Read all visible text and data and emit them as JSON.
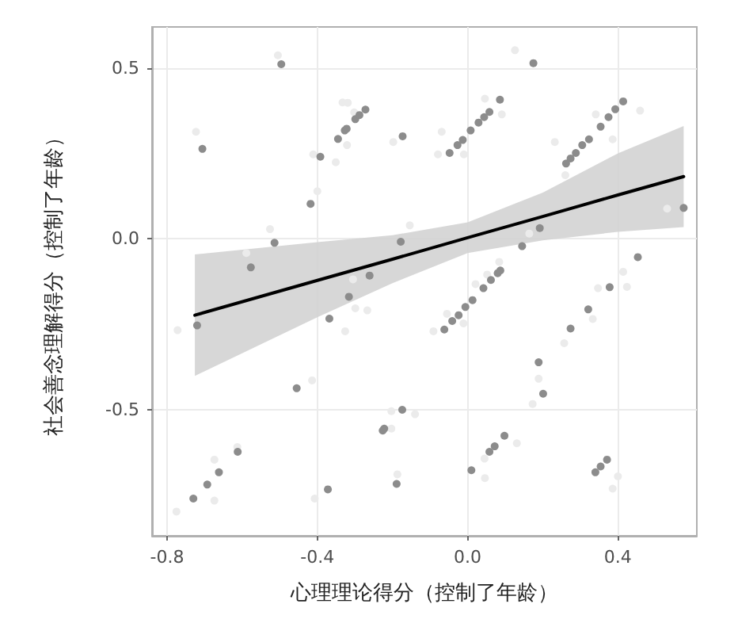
{
  "chart_data": {
    "type": "scatter",
    "xlabel": "心理理论得分（控制了年龄）",
    "ylabel": "社会善念理解得分（控制了年龄）",
    "xlim": [
      -0.84,
      0.61
    ],
    "ylim": [
      -0.87,
      0.62
    ],
    "xticks": [
      -0.8,
      -0.4,
      {
        "value": 0,
        "label": "0.0"
      },
      0.4
    ],
    "yticks": [
      -0.5,
      {
        "value": 0,
        "label": "0.0"
      },
      0.5
    ],
    "grid": true,
    "marker": "circle",
    "series": [
      {
        "color": "#ebebeb",
        "x": [
          -0.723,
          -0.505,
          -0.333,
          -0.319,
          -0.302,
          -0.321,
          -0.351,
          -0.411,
          -0.4,
          -0.526,
          -0.589,
          -0.198,
          -0.154,
          0.126,
          -0.079,
          -0.069,
          -0.01,
          0.046,
          0.091,
          0.232,
          0.26,
          0.341,
          0.459,
          0.386,
          0.531,
          0.164,
          0.084,
          -0.772,
          -0.305,
          -0.299,
          -0.267,
          -0.326,
          -0.414,
          -0.203,
          -0.14,
          -0.203,
          -0.674,
          -0.674,
          -0.613,
          -0.775,
          -0.407,
          -0.187,
          -0.091,
          -0.055,
          -0.011,
          0.021,
          0.052,
          0.084,
          0.173,
          0.189,
          0.257,
          0.333,
          0.347,
          0.414,
          0.424,
          0.045,
          0.046,
          0.131,
          0.4,
          0.386
        ],
        "values": [
          0.313,
          0.537,
          0.399,
          0.398,
          0.37,
          0.274,
          0.224,
          0.247,
          0.139,
          0.028,
          -0.042,
          0.283,
          0.039,
          0.552,
          0.247,
          0.313,
          0.247,
          0.41,
          0.364,
          0.283,
          0.186,
          0.364,
          0.375,
          0.291,
          0.088,
          0.015,
          null,
          -0.268,
          -0.119,
          -0.204,
          -0.21,
          -0.271,
          -0.415,
          -0.505,
          -0.514,
          -0.556,
          -0.647,
          -0.767,
          -0.61,
          -0.799,
          -0.761,
          -0.69,
          -0.271,
          -0.22,
          -0.248,
          -0.133,
          -0.105,
          -0.068,
          -0.484,
          -0.41,
          -0.306,
          -0.235,
          -0.145,
          -0.097,
          -0.141,
          -0.644,
          -0.701,
          -0.599,
          -0.696,
          -0.732
        ]
      },
      {
        "color": "#8c8c8c",
        "x": [
          -0.706,
          -0.496,
          -0.577,
          -0.514,
          -0.418,
          -0.392,
          -0.345,
          -0.327,
          -0.322,
          -0.299,
          -0.288,
          -0.272,
          -0.173,
          -0.178,
          0.175,
          -0.048,
          -0.027,
          -0.013,
          0.008,
          0.029,
          0.044,
          0.058,
          0.086,
          0.262,
          0.274,
          0.288,
          0.305,
          0.323,
          0.354,
          0.375,
          0.393,
          0.414,
          0.575,
          0.192,
          0.145,
          0.453,
          -0.72,
          -0.368,
          -0.316,
          -0.261,
          -0.455,
          -0.174,
          -0.222,
          -0.226,
          -0.612,
          -0.662,
          -0.693,
          -0.73,
          -0.372,
          -0.189,
          -0.062,
          -0.041,
          -0.024,
          -0.006,
          0.013,
          0.042,
          0.062,
          0.08,
          0.087,
          0.189,
          0.201,
          0.274,
          0.321,
          0.378,
          0.01,
          0.058,
          0.072,
          0.098,
          0.34,
          0.354,
          0.371
        ],
        "values": [
          0.263,
          0.511,
          -0.084,
          -0.012,
          0.102,
          0.24,
          0.292,
          0.317,
          0.322,
          0.35,
          0.362,
          0.378,
          0.3,
          -0.009,
          0.514,
          0.251,
          0.274,
          0.289,
          0.317,
          0.34,
          0.356,
          0.371,
          0.407,
          0.22,
          0.235,
          0.251,
          0.274,
          0.291,
          0.328,
          0.356,
          0.379,
          0.402,
          0.09,
          0.031,
          -0.022,
          -0.054,
          -0.254,
          -0.234,
          -0.17,
          -0.108,
          -0.438,
          -0.501,
          -0.556,
          -0.562,
          -0.624,
          -0.684,
          -0.72,
          -0.761,
          -0.734,
          -0.718,
          -0.266,
          -0.241,
          -0.224,
          -0.2,
          -0.18,
          -0.145,
          -0.121,
          -0.101,
          -0.093,
          -0.362,
          -0.454,
          -0.263,
          -0.207,
          -0.142,
          -0.678,
          -0.624,
          -0.608,
          -0.577,
          -0.684,
          -0.667,
          -0.647
        ]
      },
      {
        "type": "line",
        "color": "#000000",
        "marker": "none",
        "x": [
          -0.726,
          -0.4,
          -0.2,
          0.0,
          0.2,
          0.4,
          0.575
        ],
        "values": [
          -0.224,
          -0.122,
          -0.06,
          0.003,
          0.065,
          0.128,
          0.182
        ],
        "lower": [
          -0.402,
          -0.23,
          -0.13,
          -0.042,
          -0.005,
          0.02,
          0.034
        ],
        "upper": [
          -0.046,
          -0.01,
          0.01,
          0.048,
          0.135,
          0.25,
          0.33
        ]
      }
    ]
  }
}
